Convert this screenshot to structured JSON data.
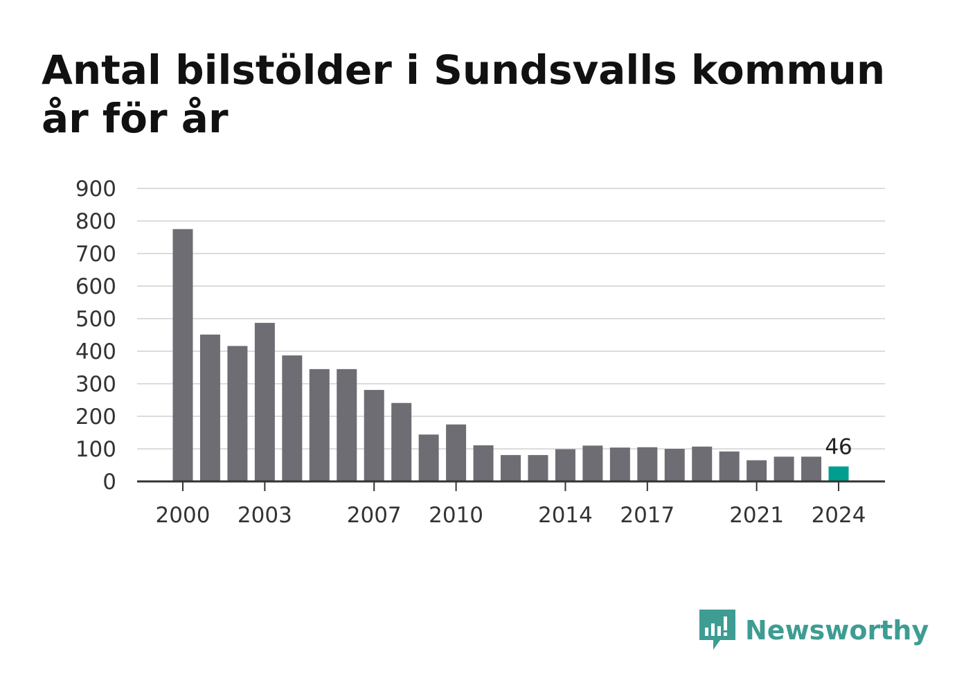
{
  "header": {
    "title": "Antal bilstölder i Sundsvalls kommun år för år"
  },
  "brand": {
    "name": "Newsworthy",
    "color": "#3e9c92"
  },
  "chart_data": {
    "type": "bar",
    "title": "Antal bilstölder i Sundsvalls kommun år för år",
    "xlabel": "",
    "ylabel": "",
    "categories": [
      "2000",
      "2001",
      "2002",
      "2003",
      "2004",
      "2005",
      "2006",
      "2007",
      "2008",
      "2009",
      "2010",
      "2011",
      "2012",
      "2013",
      "2014",
      "2015",
      "2016",
      "2017",
      "2018",
      "2019",
      "2020",
      "2021",
      "2022",
      "2023",
      "2024"
    ],
    "values": [
      775,
      451,
      416,
      487,
      387,
      345,
      345,
      281,
      241,
      144,
      175,
      111,
      81,
      81,
      99,
      110,
      104,
      105,
      100,
      107,
      92,
      65,
      76,
      76,
      46
    ],
    "x_tick_labels": [
      "2000",
      "2003",
      "2007",
      "2010",
      "2014",
      "2017",
      "2021",
      "2024"
    ],
    "y_ticks": [
      0,
      100,
      200,
      300,
      400,
      500,
      600,
      700,
      800,
      900
    ],
    "ylim": [
      0,
      900
    ],
    "grid": true,
    "highlight": {
      "category": "2024",
      "label": "46",
      "color": "#009e8f"
    },
    "bar_color": "#6e6d73"
  }
}
